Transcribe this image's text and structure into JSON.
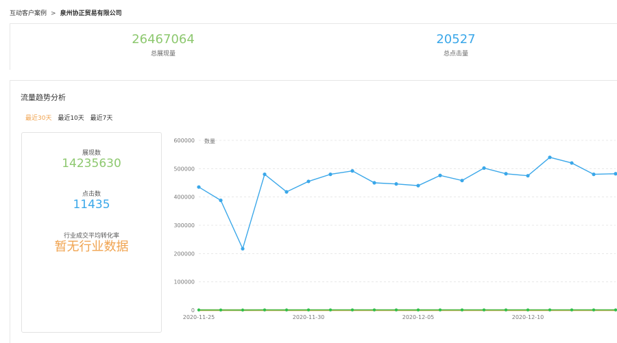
{
  "breadcrumb": {
    "parent": "互动客户案例",
    "separator": ">",
    "current": "泉州协正贸易有限公司"
  },
  "summary": {
    "impressions_value": "26467064",
    "impressions_label": "总展现量",
    "clicks_value": "20527",
    "clicks_label": "总点击量"
  },
  "trend": {
    "title": "流量趋势分析",
    "tabs": [
      "最近30天",
      "最近10天",
      "最近7天"
    ],
    "active_tab": 0
  },
  "metrics": {
    "impressions_label": "展现数",
    "impressions_value": "14235630",
    "clicks_label": "点击数",
    "clicks_value": "11435",
    "conversion_label": "行业成交平均转化率",
    "conversion_value": "暂无行业数据"
  },
  "colors": {
    "impressions": "#3aa7e9",
    "clicks": "#2fbf4a",
    "conversion": "#f0a34f",
    "summary_green": "#8dc86f"
  },
  "chart_data": {
    "type": "line",
    "ylabel": "数量",
    "ylim": [
      0,
      600000
    ],
    "yticks": [
      "0",
      "100000",
      "200000",
      "300000",
      "400000",
      "500000",
      "600000"
    ],
    "x": [
      "2020-11-25",
      "2020-11-26",
      "2020-11-27",
      "2020-11-28",
      "2020-11-29",
      "2020-11-30",
      "2020-12-01",
      "2020-12-02",
      "2020-12-03",
      "2020-12-04",
      "2020-12-05",
      "2020-12-06",
      "2020-12-07",
      "2020-12-08",
      "2020-12-09",
      "2020-12-10",
      "2020-12-11",
      "2020-12-12",
      "2020-12-13",
      "2020-12-14"
    ],
    "xtick_labels": [
      "2020-11-25",
      "2020-11-30",
      "2020-12-05",
      "2020-12-10"
    ],
    "series": [
      {
        "values": [
          435000,
          388000,
          217000,
          480000,
          418000,
          455000,
          480000,
          492000,
          450000,
          446000,
          440000,
          476000,
          458000,
          502000,
          482000,
          475000,
          540000,
          520000,
          480000,
          482000
        ]
      },
      {
        "values": [
          600,
          500,
          300,
          700,
          600,
          650,
          700,
          700,
          650,
          640,
          630,
          680,
          660,
          720,
          690,
          680,
          770,
          740,
          690,
          690
        ]
      },
      {
        "values": [
          0,
          0,
          0,
          0,
          0,
          0,
          0,
          0,
          0,
          0,
          0,
          0,
          0,
          0,
          0,
          0,
          0,
          0,
          0,
          0
        ]
      }
    ]
  }
}
